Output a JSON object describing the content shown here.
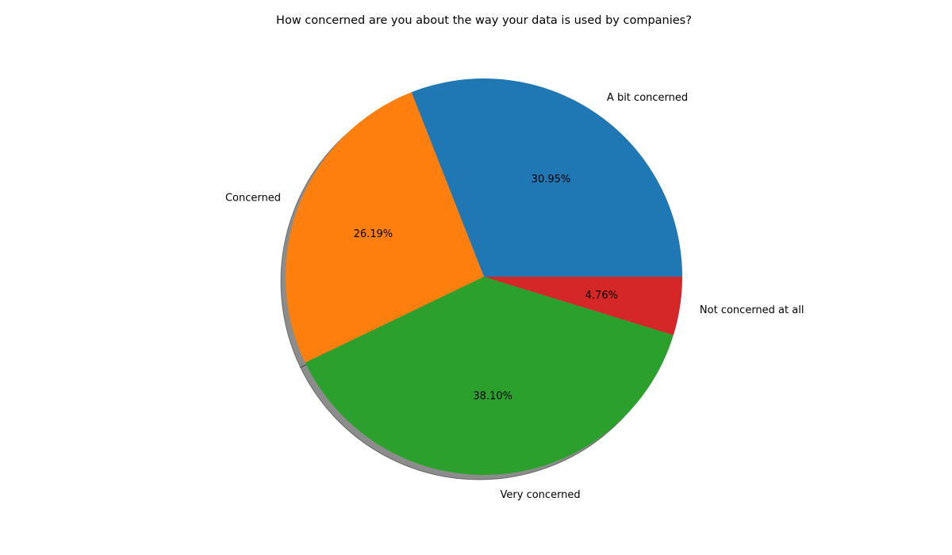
{
  "chart_data": {
    "type": "pie",
    "title": "How concerned are you about the way your data is used by companies?",
    "categories": [
      "A bit concerned",
      "Concerned",
      "Very concerned",
      "Not concerned at all"
    ],
    "values": [
      30.95,
      26.19,
      38.1,
      4.76
    ],
    "percent_labels": [
      "30.95%",
      "26.19%",
      "38.10%",
      "4.76%"
    ],
    "colors": [
      "#1f77b4",
      "#ff7f0e",
      "#2ca02c",
      "#d62728"
    ],
    "start_angle_deg": 0,
    "direction": "counterclockwise",
    "shadow": true,
    "legend": "none"
  }
}
